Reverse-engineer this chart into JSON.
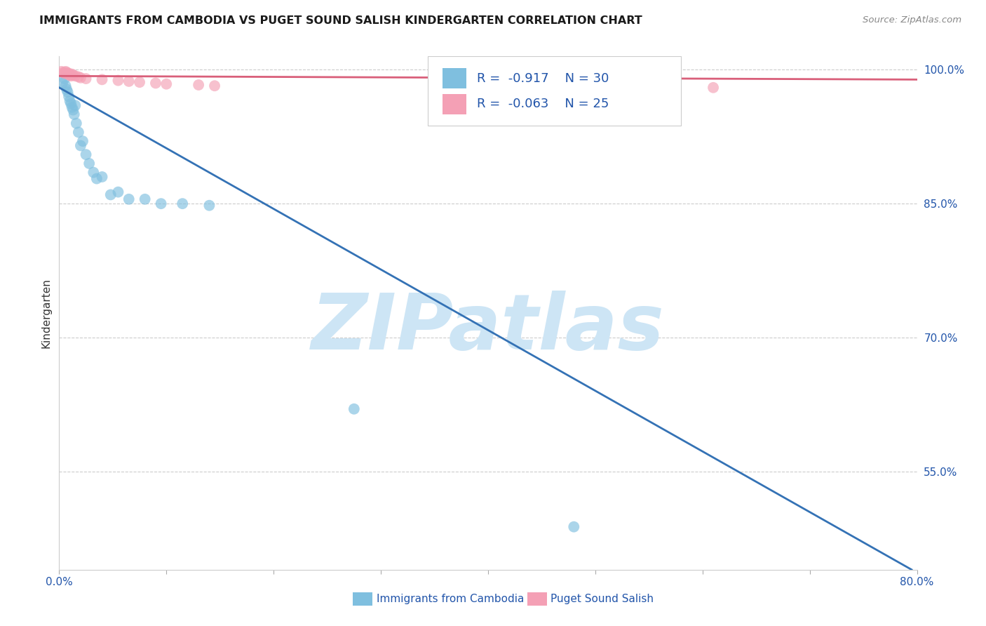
{
  "title": "IMMIGRANTS FROM CAMBODIA VS PUGET SOUND SALISH KINDERGARTEN CORRELATION CHART",
  "source": "Source: ZipAtlas.com",
  "ylabel": "Kindergarten",
  "legend_labels": [
    "Immigrants from Cambodia",
    "Puget Sound Salish"
  ],
  "r_blue": "-0.917",
  "n_blue": "30",
  "r_pink": "-0.063",
  "n_pink": "25",
  "x_min": 0.0,
  "x_max": 0.8,
  "y_min": 0.44,
  "y_max": 1.015,
  "y_ticks": [
    1.0,
    0.85,
    0.7,
    0.55
  ],
  "y_tick_labels": [
    "100.0%",
    "85.0%",
    "70.0%",
    "55.0%"
  ],
  "x_ticks": [
    0.0,
    0.1,
    0.2,
    0.3,
    0.4,
    0.5,
    0.6,
    0.7,
    0.8
  ],
  "x_tick_labels": [
    "0.0%",
    "",
    "",
    "",
    "",
    "",
    "",
    "",
    "80.0%"
  ],
  "blue_color": "#7fbfdf",
  "blue_line_color": "#3472b5",
  "pink_color": "#f4a0b5",
  "pink_line_color": "#d95f7a",
  "background_color": "#ffffff",
  "grid_color": "#cccccc",
  "title_color": "#1a1a1a",
  "axis_label_color": "#2255aa",
  "tick_color": "#2255aa",
  "watermark_text": "ZIPatlas",
  "watermark_color": "#cde5f5",
  "blue_scatter_x": [
    0.003,
    0.005,
    0.006,
    0.007,
    0.008,
    0.009,
    0.01,
    0.011,
    0.012,
    0.013,
    0.014,
    0.015,
    0.016,
    0.018,
    0.02,
    0.022,
    0.025,
    0.028,
    0.032,
    0.035,
    0.04,
    0.048,
    0.055,
    0.065,
    0.08,
    0.095,
    0.115,
    0.14,
    0.275,
    0.48
  ],
  "blue_scatter_y": [
    0.985,
    0.99,
    0.982,
    0.978,
    0.975,
    0.97,
    0.965,
    0.962,
    0.958,
    0.955,
    0.95,
    0.96,
    0.94,
    0.93,
    0.915,
    0.92,
    0.905,
    0.895,
    0.885,
    0.878,
    0.88,
    0.86,
    0.863,
    0.855,
    0.855,
    0.85,
    0.85,
    0.848,
    0.62,
    0.488
  ],
  "pink_scatter_x": [
    0.002,
    0.004,
    0.005,
    0.006,
    0.007,
    0.008,
    0.009,
    0.01,
    0.011,
    0.012,
    0.013,
    0.015,
    0.018,
    0.02,
    0.025,
    0.04,
    0.055,
    0.065,
    0.075,
    0.09,
    0.1,
    0.13,
    0.145,
    0.48,
    0.61
  ],
  "pink_scatter_y": [
    0.998,
    0.997,
    0.996,
    0.998,
    0.997,
    0.995,
    0.996,
    0.994,
    0.993,
    0.995,
    0.994,
    0.993,
    0.992,
    0.991,
    0.99,
    0.989,
    0.988,
    0.987,
    0.986,
    0.985,
    0.984,
    0.983,
    0.982,
    0.995,
    0.98
  ],
  "blue_line_x0": 0.0,
  "blue_line_y0": 0.98,
  "blue_line_x1": 0.795,
  "blue_line_y1": 0.44,
  "pink_line_x0": 0.0,
  "pink_line_y0": 0.993,
  "pink_line_x1": 0.8,
  "pink_line_y1": 0.989
}
